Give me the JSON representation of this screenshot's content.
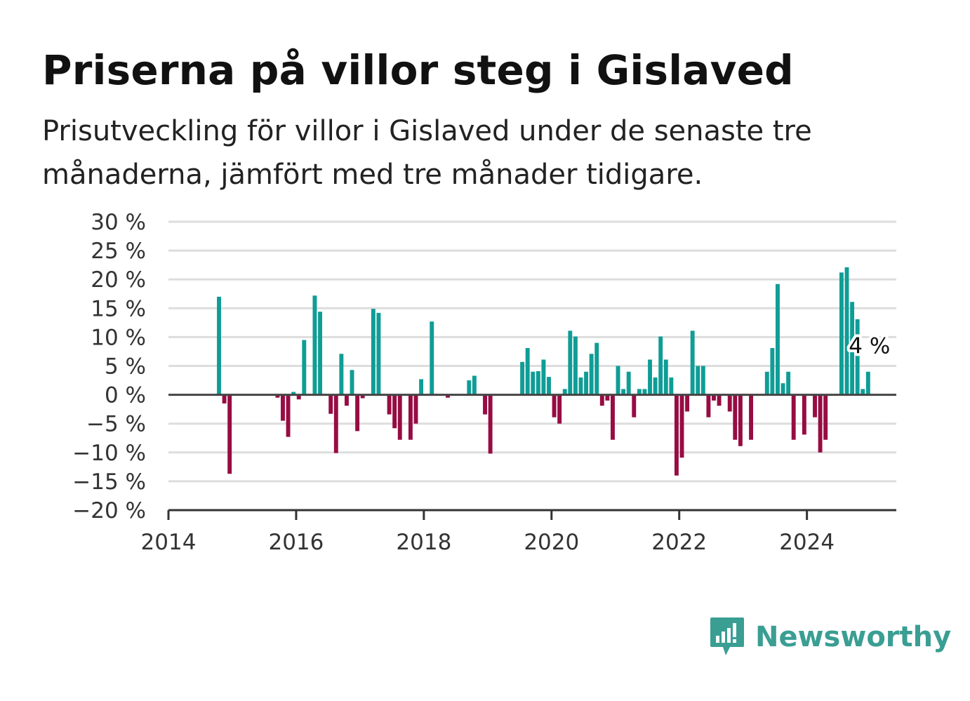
{
  "header": {
    "title": "Priserna på villor steg i Gislaved",
    "subtitle": "Prisutveckling för villor i Gislaved under de senaste tre månaderna, jämfört med tre månader tidigare."
  },
  "brand": {
    "name": "Newsworthy",
    "icon": "newsworthy-logo-icon",
    "color": "#3a9e93"
  },
  "colors": {
    "positive": "#0f9d96",
    "negative": "#970c43",
    "grid": "#dddddd",
    "zero_line": "#444444"
  },
  "chart_data": {
    "type": "bar",
    "x_axis": {
      "min": 2014.0,
      "max": 2025.4,
      "ticks": [
        2014,
        2016,
        2018,
        2020,
        2022,
        2024
      ],
      "tick_labels": [
        "2014",
        "2016",
        "2018",
        "2020",
        "2022",
        "2024"
      ]
    },
    "y_axis": {
      "min": -20,
      "max": 30,
      "ticks": [
        30,
        25,
        20,
        15,
        10,
        5,
        0,
        -5,
        -10,
        -15,
        -20
      ],
      "tick_labels": [
        "30 %",
        "25 %",
        "20 %",
        "15 %",
        "10 %",
        "5 %",
        "0 %",
        "−5 %",
        "−10 %",
        "−15 %",
        "−20 %"
      ]
    },
    "grid": true,
    "annotation": {
      "text": "4 %",
      "date": "2024-12",
      "value": 4
    },
    "series": [
      {
        "values": [
          {
            "date": "2014-10",
            "value": 17
          },
          {
            "date": "2014-11",
            "value": -1.5
          },
          {
            "date": "2014-12",
            "value": -13.7
          },
          {
            "date": "2015-09",
            "value": -0.5
          },
          {
            "date": "2015-10",
            "value": -4.5
          },
          {
            "date": "2015-11",
            "value": -7.3
          },
          {
            "date": "2015-12",
            "value": 0.5
          },
          {
            "date": "2016-01",
            "value": -0.8
          },
          {
            "date": "2016-02",
            "value": 9.5
          },
          {
            "date": "2016-04",
            "value": 17.2
          },
          {
            "date": "2016-05",
            "value": 14.4
          },
          {
            "date": "2016-07",
            "value": -3.3
          },
          {
            "date": "2016-08",
            "value": -10.1
          },
          {
            "date": "2016-09",
            "value": 7.1
          },
          {
            "date": "2016-10",
            "value": -1.9
          },
          {
            "date": "2016-11",
            "value": 4.3
          },
          {
            "date": "2016-12",
            "value": -6.3
          },
          {
            "date": "2017-01",
            "value": -0.6
          },
          {
            "date": "2017-03",
            "value": 14.9
          },
          {
            "date": "2017-04",
            "value": 14.2
          },
          {
            "date": "2017-06",
            "value": -3.4
          },
          {
            "date": "2017-07",
            "value": -5.8
          },
          {
            "date": "2017-08",
            "value": -7.8
          },
          {
            "date": "2017-10",
            "value": -7.8
          },
          {
            "date": "2017-11",
            "value": -5.0
          },
          {
            "date": "2017-12",
            "value": 2.7
          },
          {
            "date": "2018-02",
            "value": 12.7
          },
          {
            "date": "2018-05",
            "value": -0.5
          },
          {
            "date": "2018-09",
            "value": 2.5
          },
          {
            "date": "2018-10",
            "value": 3.3
          },
          {
            "date": "2018-12",
            "value": -3.4
          },
          {
            "date": "2019-01",
            "value": -10.2
          },
          {
            "date": "2019-07",
            "value": 5.7
          },
          {
            "date": "2019-08",
            "value": 8.1
          },
          {
            "date": "2019-09",
            "value": 4.0
          },
          {
            "date": "2019-10",
            "value": 4.1
          },
          {
            "date": "2019-11",
            "value": 6.1
          },
          {
            "date": "2019-12",
            "value": 3.1
          },
          {
            "date": "2020-01",
            "value": -3.9
          },
          {
            "date": "2020-02",
            "value": -5.0
          },
          {
            "date": "2020-03",
            "value": 1.0
          },
          {
            "date": "2020-04",
            "value": 11.1
          },
          {
            "date": "2020-05",
            "value": 10.1
          },
          {
            "date": "2020-06",
            "value": 3.0
          },
          {
            "date": "2020-07",
            "value": 4.0
          },
          {
            "date": "2020-08",
            "value": 7.1
          },
          {
            "date": "2020-09",
            "value": 9.0
          },
          {
            "date": "2020-10",
            "value": -1.9
          },
          {
            "date": "2020-11",
            "value": -1.0
          },
          {
            "date": "2020-12",
            "value": -7.8
          },
          {
            "date": "2021-01",
            "value": 5.0
          },
          {
            "date": "2021-02",
            "value": 1.0
          },
          {
            "date": "2021-03",
            "value": 4.0
          },
          {
            "date": "2021-04",
            "value": -3.9
          },
          {
            "date": "2021-05",
            "value": 1.0
          },
          {
            "date": "2021-06",
            "value": 1.0
          },
          {
            "date": "2021-07",
            "value": 6.1
          },
          {
            "date": "2021-08",
            "value": 3.0
          },
          {
            "date": "2021-09",
            "value": 10.1
          },
          {
            "date": "2021-10",
            "value": 6.1
          },
          {
            "date": "2021-11",
            "value": 3.0
          },
          {
            "date": "2021-12",
            "value": -14.0
          },
          {
            "date": "2022-01",
            "value": -10.9
          },
          {
            "date": "2022-02",
            "value": -2.9
          },
          {
            "date": "2022-03",
            "value": 11.1
          },
          {
            "date": "2022-04",
            "value": 5.0
          },
          {
            "date": "2022-05",
            "value": 5.0
          },
          {
            "date": "2022-06",
            "value": -3.9
          },
          {
            "date": "2022-07",
            "value": -1.0
          },
          {
            "date": "2022-08",
            "value": -1.9
          },
          {
            "date": "2022-10",
            "value": -2.9
          },
          {
            "date": "2022-11",
            "value": -7.8
          },
          {
            "date": "2022-12",
            "value": -8.9
          },
          {
            "date": "2023-02",
            "value": -7.8
          },
          {
            "date": "2023-05",
            "value": 4.0
          },
          {
            "date": "2023-06",
            "value": 8.1
          },
          {
            "date": "2023-07",
            "value": 19.2
          },
          {
            "date": "2023-08",
            "value": 2.0
          },
          {
            "date": "2023-09",
            "value": 4.0
          },
          {
            "date": "2023-10",
            "value": -7.8
          },
          {
            "date": "2023-12",
            "value": -6.9
          },
          {
            "date": "2024-02",
            "value": -3.9
          },
          {
            "date": "2024-03",
            "value": -10.0
          },
          {
            "date": "2024-04",
            "value": -7.8
          },
          {
            "date": "2024-07",
            "value": 21.2
          },
          {
            "date": "2024-08",
            "value": 22.1
          },
          {
            "date": "2024-09",
            "value": 16.1
          },
          {
            "date": "2024-10",
            "value": 13.1
          },
          {
            "date": "2024-11",
            "value": 1.0
          },
          {
            "date": "2024-12",
            "value": 4.0
          }
        ]
      }
    ]
  }
}
